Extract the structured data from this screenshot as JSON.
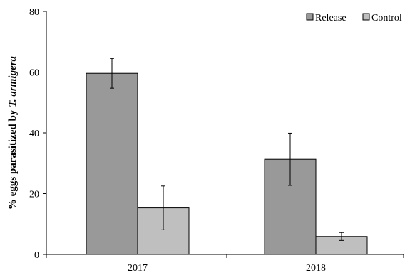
{
  "chart_data": {
    "type": "bar",
    "title": "",
    "xlabel": "",
    "ylabel_prefix": "% eggs parasitized by ",
    "ylabel_species": "T. armigera",
    "ylim": [
      0,
      80
    ],
    "yticks": [
      0,
      20,
      40,
      60,
      80
    ],
    "categories": [
      "2017",
      "2018"
    ],
    "legend_position": "top-right",
    "grid": false,
    "series": [
      {
        "name": "Release",
        "color": "#999999",
        "values": [
          59.6,
          31.3
        ],
        "errors": [
          4.9,
          8.6
        ]
      },
      {
        "name": "Control",
        "color": "#bfbfbf",
        "values": [
          15.3,
          5.9
        ],
        "errors": [
          7.2,
          1.3
        ]
      }
    ]
  }
}
